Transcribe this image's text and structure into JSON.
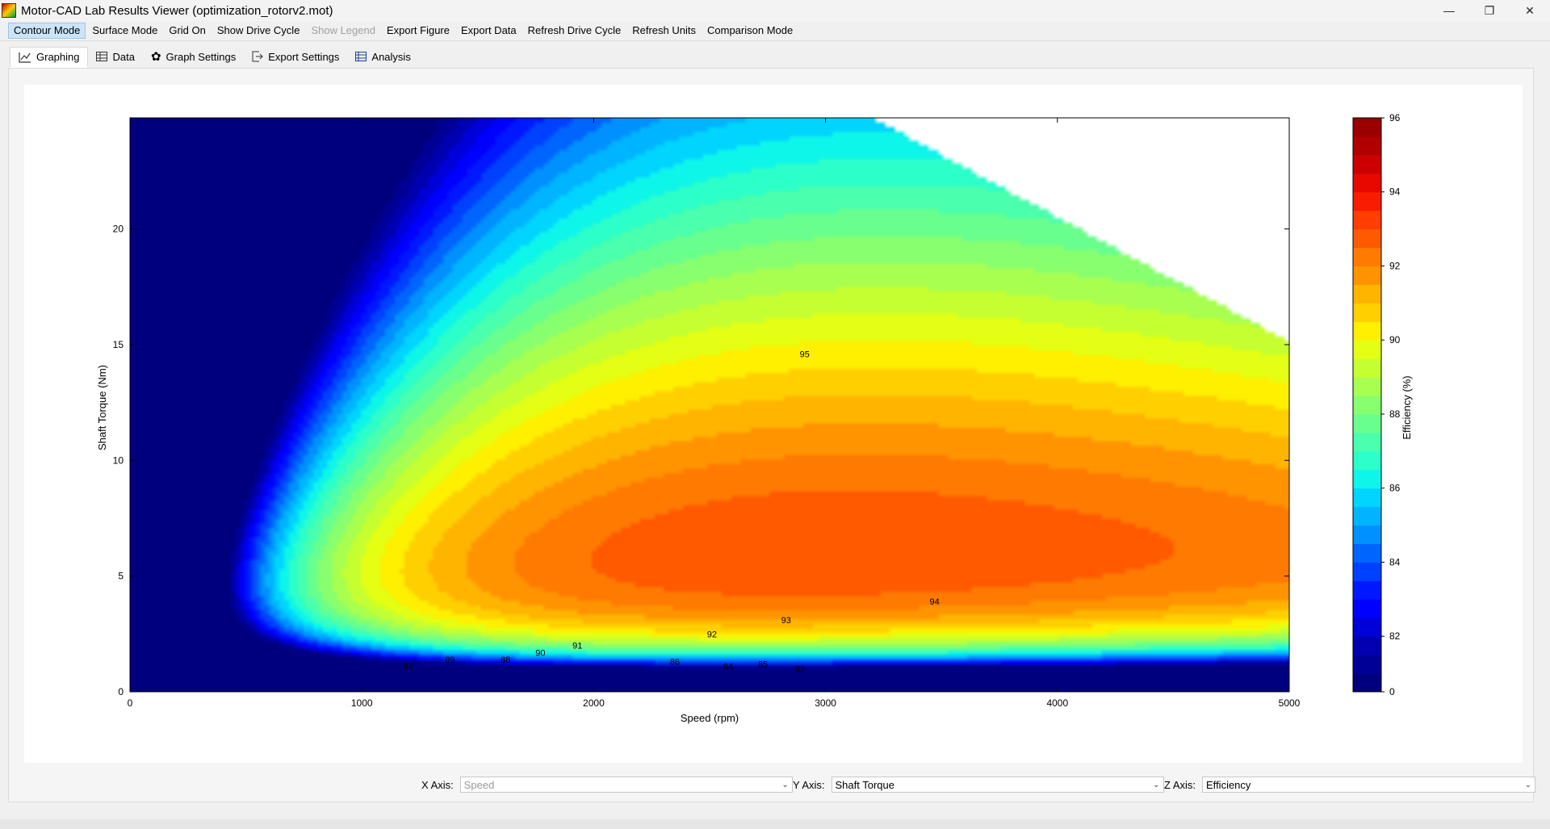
{
  "window": {
    "title": "Motor-CAD Lab Results Viewer (optimization_rotorv2.mot)",
    "controls": [
      "minimize-icon",
      "restore-icon",
      "close-icon"
    ]
  },
  "menu": [
    {
      "label": "Contour Mode",
      "state": "active"
    },
    {
      "label": "Surface Mode"
    },
    {
      "label": "Grid On"
    },
    {
      "label": "Show Drive Cycle"
    },
    {
      "label": "Show Legend",
      "state": "disabled"
    },
    {
      "label": "Export Figure"
    },
    {
      "label": "Export Data"
    },
    {
      "label": "Refresh Drive Cycle"
    },
    {
      "label": "Refresh Units"
    },
    {
      "label": "Comparison Mode"
    }
  ],
  "tabs": [
    {
      "label": "Graphing",
      "icon": "line-chart-icon",
      "active": true
    },
    {
      "label": "Data",
      "icon": "table-icon"
    },
    {
      "label": "Graph Settings",
      "icon": "gear-icon"
    },
    {
      "label": "Export Settings",
      "icon": "export-icon"
    },
    {
      "label": "Analysis",
      "icon": "list-icon"
    }
  ],
  "axes_controls": {
    "x": {
      "label": "X Axis:",
      "value": "Speed",
      "disabled": true
    },
    "y": {
      "label": "Y Axis:",
      "value": "Shaft Torque"
    },
    "z": {
      "label": "Z Axis:",
      "value": "Efficiency"
    }
  },
  "chart_data": {
    "type": "contour",
    "xlabel": "Speed  (rpm)",
    "ylabel": "Shaft Torque  (Nm)",
    "xlim": [
      0,
      5000
    ],
    "ylim": [
      0,
      24.8
    ],
    "xticks": [
      0,
      1000,
      2000,
      3000,
      4000,
      5000
    ],
    "yticks": [
      0,
      5,
      10,
      15,
      20
    ],
    "colorbar": {
      "label": "Efficiency (%)",
      "ticks": [
        0,
        82,
        84,
        86,
        88,
        90,
        92,
        94,
        96
      ],
      "levels": [
        0,
        81,
        81.5,
        82,
        82.5,
        83,
        83.5,
        84,
        84.5,
        85,
        85.5,
        86,
        86.5,
        87,
        87.5,
        88,
        88.5,
        89,
        89.5,
        90,
        90.5,
        91,
        91.5,
        92,
        92.5,
        93,
        93.5,
        94,
        94.5,
        95,
        95.5,
        96
      ],
      "colors": [
        "#00007f",
        "#000097",
        "#0000b0",
        "#0000d8",
        "#0000ff",
        "#0018ff",
        "#0040ff",
        "#0064ff",
        "#0090ff",
        "#00b4ff",
        "#00d4ff",
        "#0ef5ea",
        "#2cffca",
        "#4affad",
        "#69ff8e",
        "#88ff6f",
        "#a8ff50",
        "#c6ff31",
        "#e4ff13",
        "#fff000",
        "#ffd000",
        "#ffb400",
        "#ff9400",
        "#ff7a00",
        "#ff5a00",
        "#ff3e00",
        "#f81c00",
        "#e80800",
        "#cc0000",
        "#b00000",
        "#9a0000"
      ]
    },
    "contour_labels": [
      "87",
      "89",
      "88",
      "90",
      "91",
      "92",
      "93",
      "94",
      "86",
      "84",
      "85",
      "83",
      "95"
    ]
  }
}
